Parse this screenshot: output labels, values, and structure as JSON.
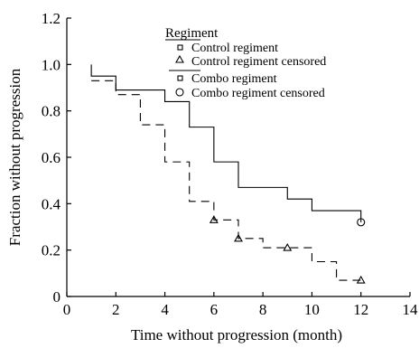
{
  "chart_data": {
    "type": "line",
    "xlabel": "Time without progression (month)",
    "ylabel": "Fraction without progression",
    "xlim": [
      0,
      14
    ],
    "ylim": [
      0,
      1.2
    ],
    "x_ticks": [
      0,
      2,
      4,
      6,
      8,
      10,
      12,
      14
    ],
    "y_ticks": [
      0,
      0.2,
      0.4,
      0.6,
      0.8,
      1.0,
      1.2
    ],
    "x_tick_labels": [
      "0",
      "2",
      "4",
      "6",
      "8",
      "10",
      "12",
      "14"
    ],
    "y_tick_labels": [
      "0",
      "0.2",
      "0.4",
      "0.6",
      "0.8",
      "1.0",
      "1.2"
    ],
    "grid": false,
    "legend": {
      "title": "Regiment",
      "placement": "top-center",
      "entries": [
        "Control regiment",
        "Control regiment censored",
        "Combo regiment",
        "Combo regiment censored"
      ]
    },
    "series": [
      {
        "name": "Control regiment",
        "style": "dashed",
        "start": [
          1,
          0.93
        ],
        "steps": [
          [
            2,
            0.87
          ],
          [
            3,
            0.74
          ],
          [
            4,
            0.58
          ],
          [
            5,
            0.41
          ],
          [
            6,
            0.33
          ],
          [
            7,
            0.25
          ],
          [
            8,
            0.21
          ],
          [
            10,
            0.15
          ],
          [
            11,
            0.07
          ],
          [
            12,
            0.07
          ]
        ],
        "censored": [
          [
            6,
            0.33
          ],
          [
            7,
            0.25
          ],
          [
            9,
            0.21
          ],
          [
            12,
            0.07
          ]
        ]
      },
      {
        "name": "Combo regiment",
        "style": "solid",
        "start": [
          1,
          1.0
        ],
        "steps": [
          [
            1,
            0.95
          ],
          [
            2,
            0.89
          ],
          [
            4,
            0.84
          ],
          [
            5,
            0.73
          ],
          [
            6,
            0.58
          ],
          [
            7,
            0.47
          ],
          [
            9,
            0.42
          ],
          [
            10,
            0.37
          ],
          [
            12,
            0.37
          ],
          [
            12,
            0.32
          ]
        ],
        "censored": [
          [
            12,
            0.32
          ]
        ]
      }
    ]
  }
}
